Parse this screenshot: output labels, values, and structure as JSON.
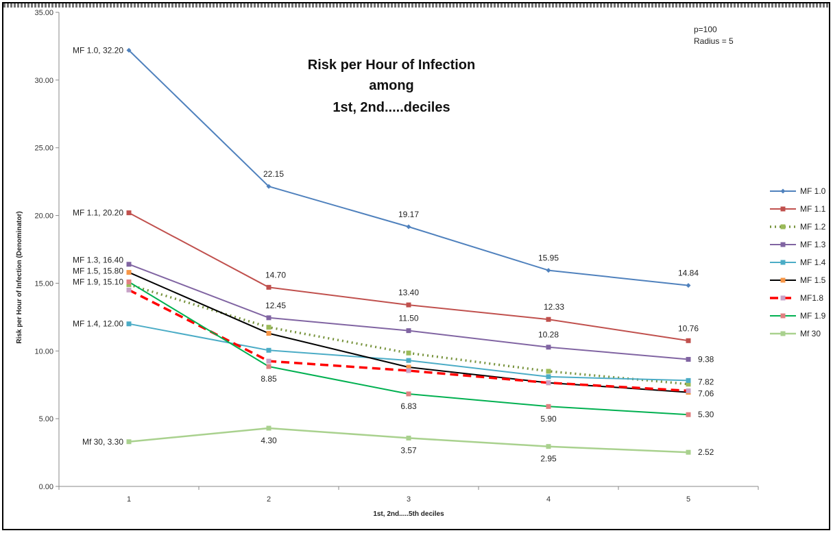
{
  "chart_data": {
    "type": "line",
    "title_lines": [
      "Risk per Hour of Infection",
      "among",
      "1st, 2nd.....deciles"
    ],
    "notes": [
      "p=100",
      "Radius = 5"
    ],
    "xlabel": "1st, 2nd.....5th deciles",
    "ylabel": "Risk per Hour of Infection (Denominator)",
    "categories": [
      "1",
      "2",
      "3",
      "4",
      "5"
    ],
    "ylim": [
      0,
      35
    ],
    "yticks": [
      "0.00",
      "5.00",
      "10.00",
      "15.00",
      "20.00",
      "25.00",
      "30.00",
      "35.00"
    ],
    "legend_position": "right",
    "series": [
      {
        "name": "MF 1.0",
        "values": [
          32.2,
          22.15,
          19.17,
          15.95,
          14.84
        ],
        "color": "#4f81bd",
        "dash": "",
        "width": 2,
        "marker": "diamond",
        "marker_color": "#4f81bd"
      },
      {
        "name": "MF 1.1",
        "values": [
          20.2,
          14.7,
          13.4,
          12.33,
          10.76
        ],
        "color": "#c0504d",
        "dash": "",
        "width": 2,
        "marker": "square",
        "marker_color": "#c0504d"
      },
      {
        "name": "MF 1.2",
        "values": [
          14.9,
          11.75,
          9.85,
          8.5,
          7.55
        ],
        "color": "#77933c",
        "dash": "2,5",
        "width": 3.5,
        "marker": "square",
        "marker_color": "#9bbb59"
      },
      {
        "name": "MF 1.3",
        "values": [
          16.4,
          12.45,
          11.5,
          10.28,
          9.38
        ],
        "color": "#8064a2",
        "dash": "",
        "width": 2,
        "marker": "square",
        "marker_color": "#8064a2"
      },
      {
        "name": "MF 1.4",
        "values": [
          12.0,
          10.05,
          9.3,
          8.1,
          7.82
        ],
        "color": "#4bacc6",
        "dash": "",
        "width": 2,
        "marker": "square",
        "marker_color": "#4bacc6"
      },
      {
        "name": "MF 1.5",
        "values": [
          15.8,
          11.3,
          8.8,
          7.65,
          6.95
        ],
        "color": "#000000",
        "dash": "",
        "width": 2,
        "marker": "square",
        "marker_color": "#f79646"
      },
      {
        "name": "MF1.8",
        "values": [
          14.5,
          9.25,
          8.55,
          7.65,
          7.06
        ],
        "color": "#ff0000",
        "dash": "12,7",
        "width": 3.5,
        "marker": "square",
        "marker_color": "#c7a2c7"
      },
      {
        "name": "MF 1.9",
        "values": [
          15.1,
          8.85,
          6.83,
          5.9,
          5.3
        ],
        "color": "#00b050",
        "dash": "",
        "width": 2,
        "marker": "square",
        "marker_color": "#e08080"
      },
      {
        "name": "Mf 30",
        "values": [
          3.3,
          4.3,
          3.57,
          2.95,
          2.52
        ],
        "color": "#a9d18e",
        "dash": "",
        "width": 2.5,
        "marker": "square",
        "marker_color": "#a9d18e"
      }
    ],
    "data_labels": [
      {
        "text": "MF 1.0, 32.20",
        "series": 0,
        "index": 0,
        "anchor": "end",
        "dx": -8,
        "dy": 4
      },
      {
        "text": "22.15",
        "series": 0,
        "index": 1,
        "anchor": "middle",
        "dx": 7,
        "dy": -14
      },
      {
        "text": "19.17",
        "series": 0,
        "index": 2,
        "anchor": "middle",
        "dx": 0,
        "dy": -14
      },
      {
        "text": "15.95",
        "series": 0,
        "index": 3,
        "anchor": "middle",
        "dx": 0,
        "dy": -14
      },
      {
        "text": "14.84",
        "series": 0,
        "index": 4,
        "anchor": "middle",
        "dx": 0,
        "dy": -14
      },
      {
        "text": "MF 1.1, 20.20",
        "series": 1,
        "index": 0,
        "anchor": "end",
        "dx": -8,
        "dy": 4
      },
      {
        "text": "14.70",
        "series": 1,
        "index": 1,
        "anchor": "middle",
        "dx": 10,
        "dy": -14
      },
      {
        "text": "13.40",
        "series": 1,
        "index": 2,
        "anchor": "middle",
        "dx": 0,
        "dy": -14
      },
      {
        "text": "12.33",
        "series": 1,
        "index": 3,
        "anchor": "middle",
        "dx": 8,
        "dy": -14
      },
      {
        "text": "10.76",
        "series": 1,
        "index": 4,
        "anchor": "middle",
        "dx": 0,
        "dy": -14
      },
      {
        "text": "MF 1.3, 16.40",
        "series": 3,
        "index": 0,
        "anchor": "end",
        "dx": -8,
        "dy": -2
      },
      {
        "text": "12.45",
        "series": 3,
        "index": 1,
        "anchor": "middle",
        "dx": 10,
        "dy": -14
      },
      {
        "text": "11.50",
        "series": 3,
        "index": 2,
        "anchor": "middle",
        "dx": 0,
        "dy": -14
      },
      {
        "text": "10.28",
        "series": 3,
        "index": 3,
        "anchor": "middle",
        "dx": 0,
        "dy": -14
      },
      {
        "text": "9.38",
        "series": 3,
        "index": 4,
        "anchor": "start",
        "dx": 14,
        "dy": 4
      },
      {
        "text": "MF 1.4, 12.00",
        "series": 4,
        "index": 0,
        "anchor": "end",
        "dx": -8,
        "dy": 4
      },
      {
        "text": "7.82",
        "series": 4,
        "index": 4,
        "anchor": "start",
        "dx": 14,
        "dy": 6
      },
      {
        "text": "MF 1.5, 15.80",
        "series": 5,
        "index": 0,
        "anchor": "end",
        "dx": -8,
        "dy": 2
      },
      {
        "text": "7.06",
        "series": 6,
        "index": 4,
        "anchor": "start",
        "dx": 14,
        "dy": 8
      },
      {
        "text": "MF 1.9, 15.10",
        "series": 7,
        "index": 0,
        "anchor": "end",
        "dx": -8,
        "dy": 4
      },
      {
        "text": "8.85",
        "series": 7,
        "index": 1,
        "anchor": "middle",
        "dx": 0,
        "dy": 22
      },
      {
        "text": "6.83",
        "series": 7,
        "index": 2,
        "anchor": "middle",
        "dx": 0,
        "dy": 22
      },
      {
        "text": "5.90",
        "series": 7,
        "index": 3,
        "anchor": "middle",
        "dx": 0,
        "dy": 22
      },
      {
        "text": "5.30",
        "series": 7,
        "index": 4,
        "anchor": "start",
        "dx": 14,
        "dy": 4
      },
      {
        "text": "Mf 30, 3.30",
        "series": 8,
        "index": 0,
        "anchor": "end",
        "dx": -8,
        "dy": 4
      },
      {
        "text": "4.30",
        "series": 8,
        "index": 1,
        "anchor": "middle",
        "dx": 0,
        "dy": 22
      },
      {
        "text": "3.57",
        "series": 8,
        "index": 2,
        "anchor": "middle",
        "dx": 0,
        "dy": 22
      },
      {
        "text": "2.95",
        "series": 8,
        "index": 3,
        "anchor": "middle",
        "dx": 0,
        "dy": 22
      },
      {
        "text": "2.52",
        "series": 8,
        "index": 4,
        "anchor": "start",
        "dx": 14,
        "dy": 4
      }
    ]
  }
}
